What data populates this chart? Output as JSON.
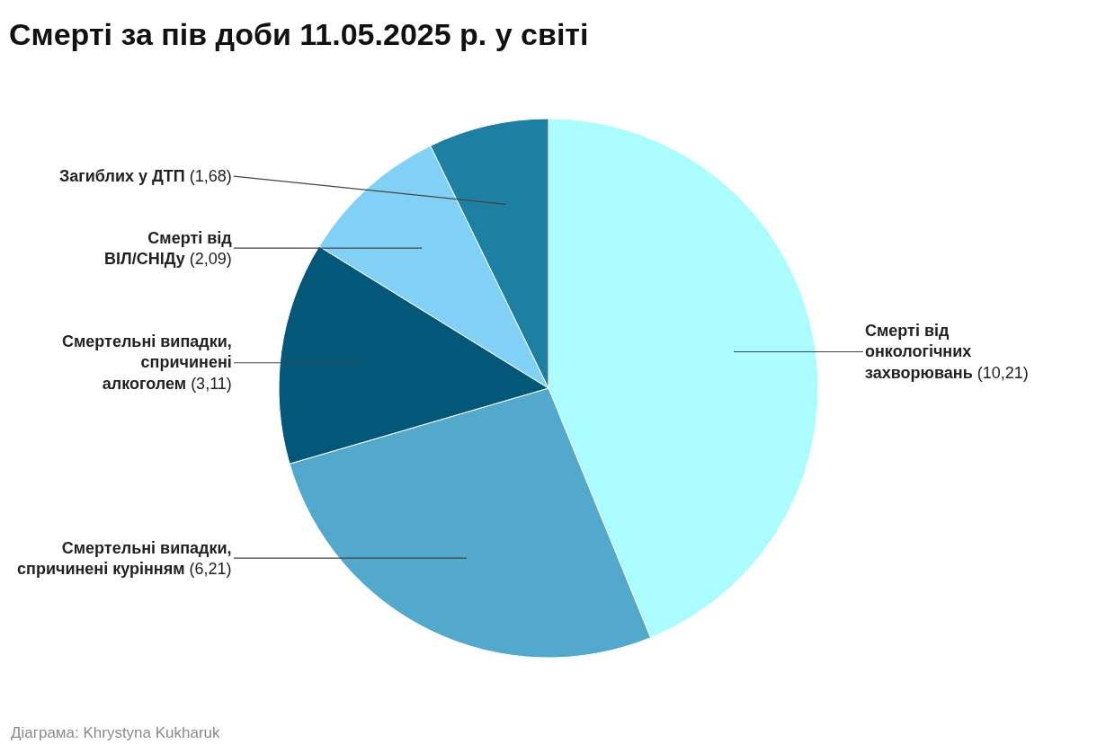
{
  "chart_data": {
    "type": "pie",
    "title": "Смерті за пів доби 11.05.2025 р. у світі",
    "categories": [
      "Смерті від онкологічних захворювань",
      "Смертельні випадки, спричинені курінням",
      "Смертельні випадки, спричинені алкоголем",
      "Смерті від ВІЛ/СНІДу",
      "Загиблих у ДТП"
    ],
    "values": [
      10.21,
      6.21,
      3.11,
      2.09,
      1.68
    ],
    "value_labels": [
      "(10,21)",
      "(6,21)",
      "(3,11)",
      "(2,09)",
      "(1,68)"
    ],
    "colors": [
      "#aafcff",
      "#52a9cc",
      "#03587a",
      "#80d1f5",
      "#1d80a3"
    ],
    "annotations": [
      "Діаграма: Khrystyna Kukharuk"
    ],
    "legend": false
  }
}
